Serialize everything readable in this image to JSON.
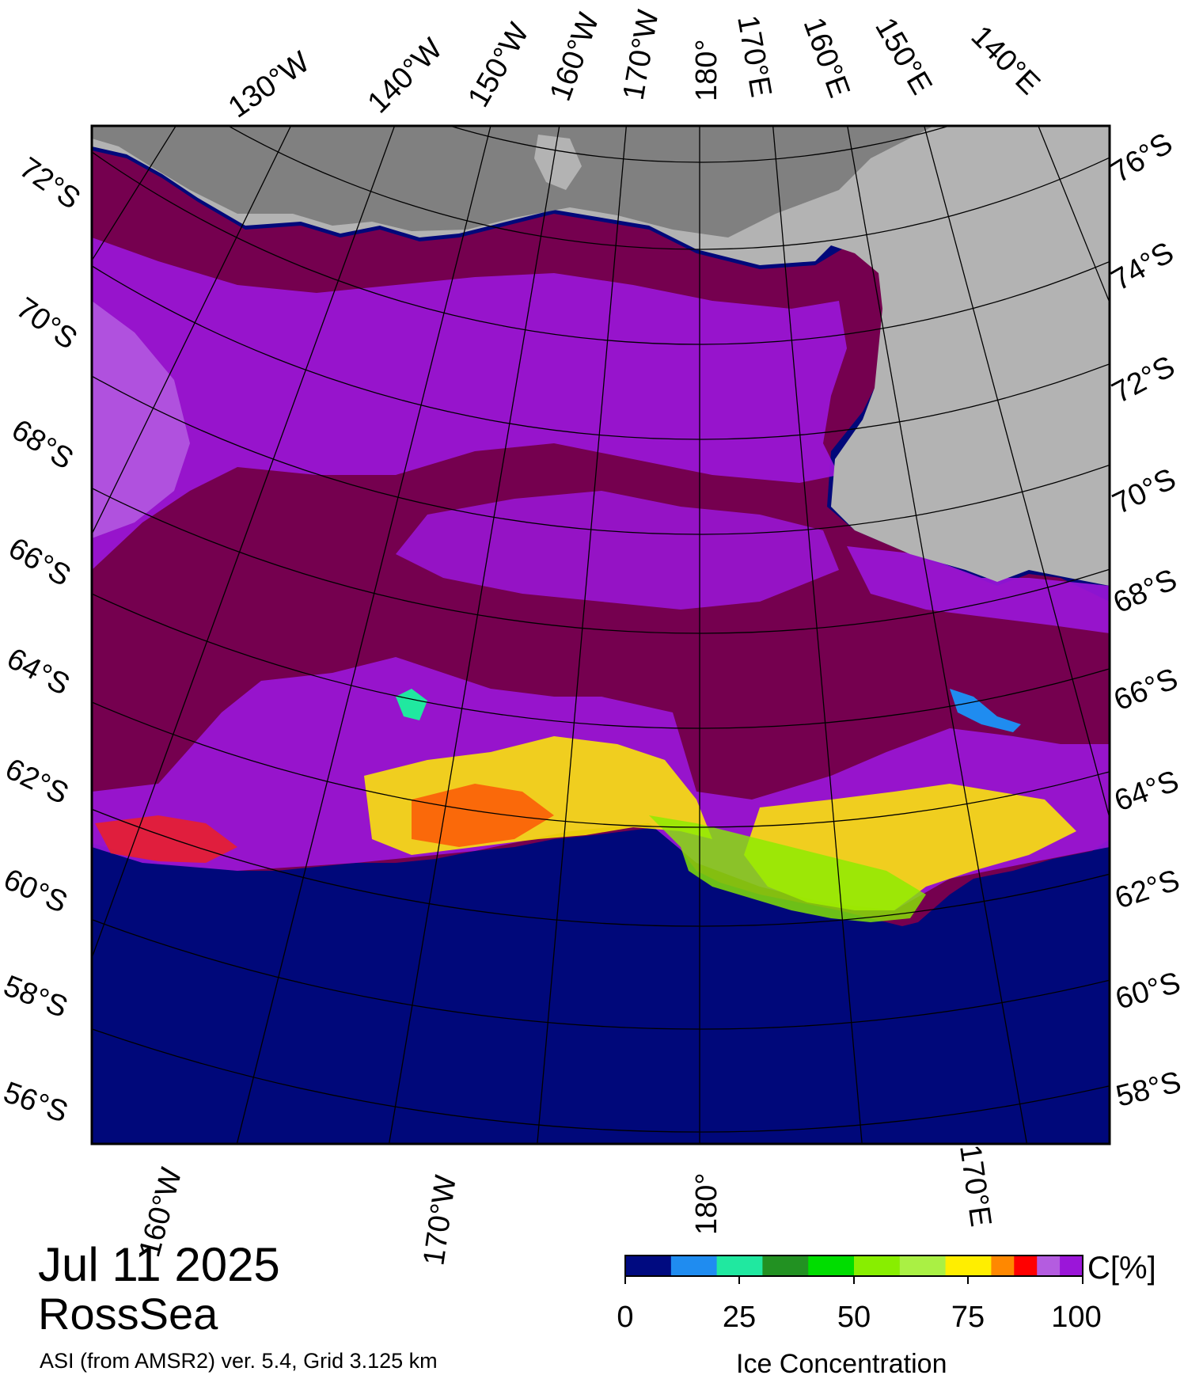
{
  "map": {
    "date": "Jul 11 2025",
    "region": "RossSea",
    "product": "ASI (from AMSR2) ver. 5.4,  Grid 3.125 km",
    "colors": {
      "open_water": "#00087a",
      "full_ice": "#75004f",
      "land": "#b3b3b3",
      "ice_shelf_dark": "#808080",
      "ice_purple": "#9b16d9",
      "ice_light_purple": "#b45ce0"
    },
    "top_longitude_labels": [
      "130°W",
      "140°W",
      "150°W",
      "160°W",
      "170°W",
      "180°",
      "170°E",
      "160°E",
      "150°E",
      "140°E"
    ],
    "bottom_longitude_labels": [
      "160°W",
      "170°W",
      "180°",
      "170°E"
    ],
    "left_latitude_labels": [
      "72°S",
      "70°S",
      "68°S",
      "66°S",
      "64°S",
      "62°S",
      "60°S",
      "58°S",
      "56°S"
    ],
    "right_latitude_labels": [
      "76°S",
      "74°S",
      "72°S",
      "70°S",
      "68°S",
      "66°S",
      "64°S",
      "62°S",
      "60°S",
      "58°S"
    ]
  },
  "colorbar": {
    "unit": "C[%]",
    "title": "Ice Concentration",
    "ticks": [
      "0",
      "25",
      "50",
      "75",
      "100"
    ],
    "colors": [
      "#000a80",
      "#1f8cf0",
      "#20e8a0",
      "#229122",
      "#00dd00",
      "#88ee00",
      "#aaf044",
      "#ffee00",
      "#ff8800",
      "#ff0000",
      "#b45ce0",
      "#9b16d9"
    ]
  }
}
